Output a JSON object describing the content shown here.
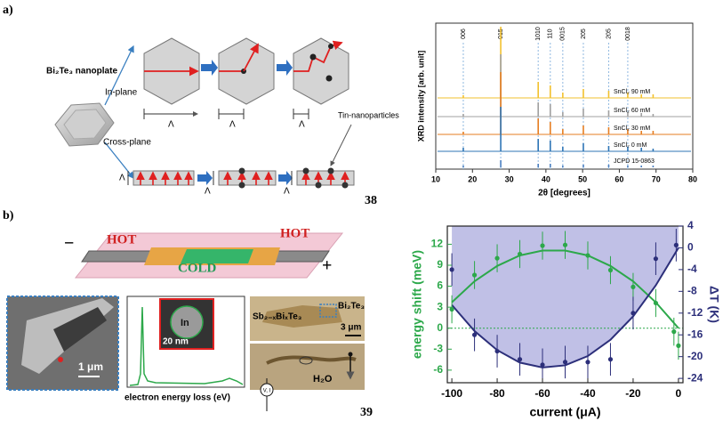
{
  "panel_labels": [
    "a)",
    "b)"
  ],
  "references": [
    "38",
    "39"
  ],
  "diagram": {
    "nanoplate": "Bi₂Te₃ nanoplate",
    "in_plane": "In-plane",
    "cross_plane": "Cross-plane",
    "spacing": "Λ",
    "particles": "Tin-nanoparticles"
  },
  "device": {
    "hot_left": "HOT",
    "hot_right": "HOT",
    "cold": "COLD",
    "minus": "−",
    "plus": "+",
    "sem_scale": "1 μm",
    "inset_label": "In",
    "inset_scale": "20 nm",
    "eels_xlabel": "electron energy loss (eV)",
    "alloy": "Sb₂₋ₓBiₓTe₃",
    "bi2te3": "Bi₂Te₃",
    "optical_scale": "3 μm",
    "water": "H₂O",
    "probe": "V, I"
  },
  "chart_data": [
    {
      "type": "spectrum",
      "xlabel": "2θ [degrees]",
      "ylabel": "XRD intensity [arb. unit]",
      "xlim": [
        10,
        80
      ],
      "xticks": [
        10,
        20,
        30,
        40,
        50,
        60,
        70,
        80
      ],
      "annotations": [
        {
          "x": 17.5,
          "text": "006"
        },
        {
          "x": 27.7,
          "text": "015"
        },
        {
          "x": 37.9,
          "text": "1010"
        },
        {
          "x": 41.2,
          "text": "110"
        },
        {
          "x": 44.6,
          "text": "0015"
        },
        {
          "x": 50.2,
          "text": "205"
        },
        {
          "x": 57.1,
          "text": "205"
        },
        {
          "x": 62.3,
          "text": "0018"
        }
      ],
      "x": [
        17.5,
        27.7,
        37.9,
        41.2,
        44.6,
        50.2,
        57.1,
        62.3,
        66.0,
        69.2
      ],
      "series": [
        {
          "name": "SnCl₂ 90 mM",
          "color": "#f2c12e",
          "values": [
            3,
            80,
            18,
            14,
            6,
            10,
            8,
            6,
            4,
            4
          ]
        },
        {
          "name": "SnCl₂ 60 mM",
          "color": "#a0a0a0",
          "values": [
            3,
            70,
            16,
            14,
            5,
            9,
            7,
            5,
            4,
            3
          ]
        },
        {
          "name": "SnCl₂ 30 mM",
          "color": "#e67e22",
          "values": [
            3,
            70,
            18,
            14,
            6,
            10,
            8,
            6,
            4,
            4
          ]
        },
        {
          "name": "SnCl₂ 0 mM",
          "color": "#2e75b6",
          "values": [
            4,
            50,
            14,
            12,
            5,
            9,
            6,
            5,
            4,
            3
          ]
        },
        {
          "name": "JCPD 15-0863",
          "color": "#4a7fc1",
          "values": [
            2,
            8,
            4,
            4,
            2,
            3,
            3,
            2,
            2,
            2
          ]
        }
      ]
    },
    {
      "type": "scatter",
      "xlabel": "current (μA)",
      "ylabel": "energy shift (meV)",
      "y2label": "ΔT (K)",
      "xlim": [
        -102,
        2
      ],
      "xticks": [
        -100,
        -80,
        -60,
        -40,
        -20,
        0
      ],
      "ylim": [
        -7.8,
        14.6
      ],
      "yticks": [
        -6,
        -3,
        0,
        3,
        6,
        9,
        12
      ],
      "y2lim": [
        -24.8,
        4
      ],
      "y2ticks": [
        4,
        0,
        -4,
        -8,
        -12,
        -16,
        -20,
        -24
      ],
      "ycolor": "#2ca84a",
      "y2color": "#2c2f7a",
      "reference_line": 0,
      "series": [
        {
          "color": "#2ca84a",
          "x": [
            -100,
            -90,
            -80,
            -70,
            -60,
            -50,
            -40,
            -30,
            -20,
            -10,
            -2,
            0
          ],
          "values": [
            2.7,
            7.6,
            10.0,
            10.6,
            11.8,
            11.9,
            10.4,
            8.3,
            5.9,
            3.6,
            -0.5,
            -2.5
          ],
          "errors": [
            2,
            2,
            2,
            2,
            2,
            2,
            2,
            2,
            2,
            2,
            2,
            2
          ]
        },
        {
          "color": "#2c2f7a",
          "axis": "y2",
          "x": [
            -100,
            -90,
            -80,
            -70,
            -60,
            -50,
            -40,
            -30,
            -20,
            -10,
            -1
          ],
          "values": [
            -4,
            -16,
            -19,
            -20.5,
            -21.5,
            -21,
            -21,
            -20.5,
            -12,
            -2,
            0.5
          ],
          "errors": [
            3,
            3,
            3,
            3,
            3,
            3,
            3,
            3,
            3,
            3,
            3
          ]
        }
      ],
      "fits": [
        {
          "color": "#2ca84a",
          "x": [
            -100,
            -90,
            -80,
            -70,
            -60,
            -50,
            -40,
            -30,
            -20,
            -10,
            0
          ],
          "values": [
            3.7,
            6.7,
            8.9,
            10.4,
            11.1,
            11.1,
            10.4,
            8.9,
            6.7,
            3.7,
            0
          ]
        },
        {
          "color": "#2c2f7a",
          "axis": "y2",
          "fill": "#b9b9e3",
          "x": [
            -100,
            -90,
            -80,
            -70,
            -60,
            -50,
            -40,
            -30,
            -20,
            -10,
            0
          ],
          "values": [
            -10.5,
            -15.3,
            -18.8,
            -21.1,
            -22.0,
            -21.6,
            -19.9,
            -16.9,
            -12.6,
            -6.9,
            0
          ]
        }
      ]
    }
  ]
}
